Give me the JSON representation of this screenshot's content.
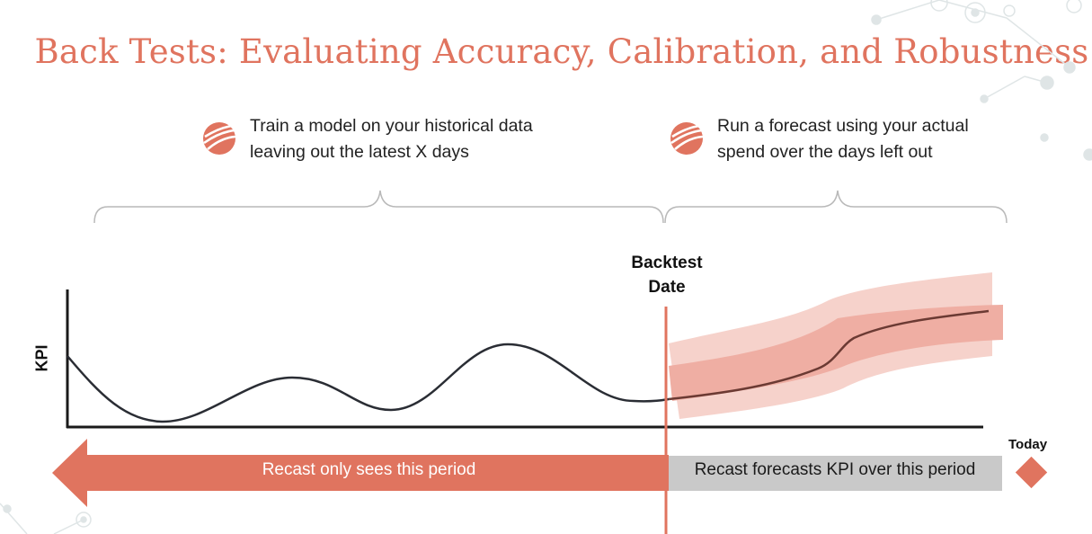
{
  "title": "Back Tests: Evaluating Accuracy, Calibration, and Robustness",
  "steps": [
    {
      "icon": "sphere-logo-icon",
      "line1": "Train a model on your historical data",
      "line2": "leaving out the latest X days"
    },
    {
      "icon": "sphere-logo-icon",
      "line1": "Run a forecast using your actual",
      "line2": "spend over the days left out"
    }
  ],
  "backtest_label": {
    "line1": "Backtest",
    "line2": "Date"
  },
  "today_label": "Today",
  "y_axis_label": "KPI",
  "history_arrow_label": "Recast only sees this period",
  "forecast_box_label": "Recast forecasts KPI over this period",
  "colors": {
    "accent": "#e0745f",
    "band_outer": "#f6d2cb",
    "band_inner": "#efaea3",
    "forecast_line": "#6b3a33",
    "history_line": "#2a2d34",
    "grey_box": "#c9c9c9"
  }
}
